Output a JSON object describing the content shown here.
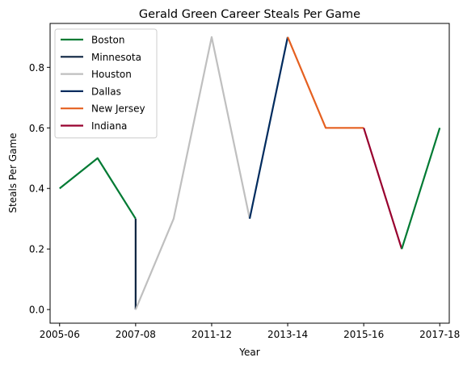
{
  "chart_data": {
    "type": "line",
    "title": "Gerald Green Career Steals Per Game",
    "xlabel": "Year",
    "ylabel": "Steals Per Game",
    "x_tick_labels": [
      "2005-06",
      "2007-08",
      "2011-12",
      "2013-14",
      "2015-16",
      "2017-18"
    ],
    "xlim": [
      -0.25,
      10.25
    ],
    "ylim": [
      -0.045,
      0.945
    ],
    "y_ticks": [
      0.0,
      0.2,
      0.4,
      0.6,
      0.8
    ],
    "y_tick_labels": [
      "0.0",
      "0.2",
      "0.4",
      "0.6",
      "0.8"
    ],
    "grid": false,
    "legend_position": "top-left",
    "series": [
      {
        "name": "Boston",
        "color": "#007A33",
        "points": [
          [
            0,
            0.4
          ],
          [
            1,
            0.5
          ],
          [
            2,
            0.3
          ]
        ]
      },
      {
        "name": "Minnesota",
        "color": "#0C2340",
        "points": [
          [
            2,
            0.3
          ],
          [
            2,
            0.0
          ]
        ]
      },
      {
        "name": "Houston",
        "color": "#BFBFBF",
        "points": [
          [
            2,
            0.0
          ],
          [
            3,
            0.3
          ],
          [
            4,
            0.9
          ],
          [
            5,
            0.3
          ]
        ]
      },
      {
        "name": "Dallas",
        "color": "#002B5E",
        "points": [
          [
            5,
            0.3
          ],
          [
            6,
            0.9
          ]
        ]
      },
      {
        "name": "New Jersey",
        "color": "#E56020",
        "points": [
          [
            6,
            0.9
          ],
          [
            7,
            0.6
          ],
          [
            8,
            0.6
          ]
        ]
      },
      {
        "name": "Indiana",
        "color": "#98002E",
        "points": [
          [
            8,
            0.6
          ],
          [
            9,
            0.2
          ]
        ]
      },
      {
        "name": "",
        "color": "#007A33",
        "points": [
          [
            9,
            0.2
          ],
          [
            10,
            0.6
          ]
        ]
      }
    ]
  }
}
